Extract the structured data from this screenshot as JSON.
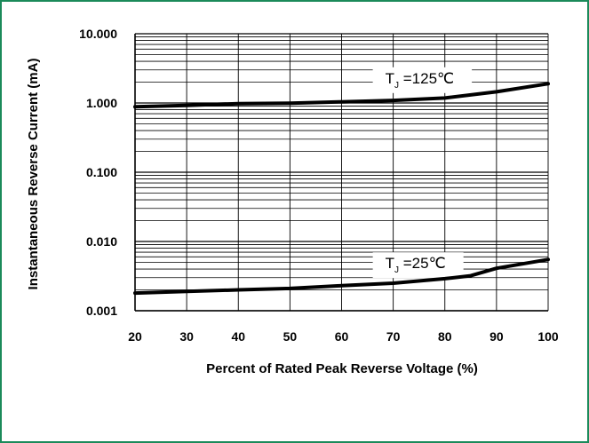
{
  "chart_data": {
    "type": "line",
    "title": "",
    "xlabel": "Percent of Rated Peak Reverse Voltage (%)",
    "ylabel": "Instantaneous Reverse Current (mA)",
    "x_scale": "linear",
    "y_scale": "log",
    "xlim": [
      20,
      100
    ],
    "ylim": [
      0.001,
      10
    ],
    "x_ticks": [
      20,
      30,
      40,
      50,
      60,
      70,
      80,
      90,
      100
    ],
    "x_tick_labels": [
      "20",
      "30",
      "40",
      "50",
      "60",
      "70",
      "80",
      "90",
      "100"
    ],
    "y_ticks": [
      0.001,
      0.01,
      0.1,
      1,
      10
    ],
    "y_tick_labels": [
      "0.001",
      "0.010",
      "0.100",
      "1.000",
      "10.000"
    ],
    "grid": true,
    "line_color": "#000000",
    "frame_color": "#1b8a5a",
    "series": [
      {
        "x": [
          20,
          30,
          40,
          50,
          60,
          70,
          80,
          90,
          100
        ],
        "y": [
          0.88,
          0.92,
          0.98,
          0.99,
          1.04,
          1.09,
          1.18,
          1.45,
          1.9
        ]
      },
      {
        "x": [
          20,
          30,
          40,
          50,
          60,
          70,
          80,
          85,
          90,
          100
        ],
        "y": [
          0.0018,
          0.0019,
          0.002,
          0.0021,
          0.0023,
          0.0025,
          0.0029,
          0.0032,
          0.0041,
          0.0055
        ]
      }
    ],
    "annotations": [
      {
        "text": "T",
        "sub": "J",
        "rest": " =125℃",
        "x": 70,
        "y": 2.3
      },
      {
        "text": "T",
        "sub": "J",
        "rest": " =25℃",
        "x": 70,
        "y": 0.0049
      }
    ]
  }
}
